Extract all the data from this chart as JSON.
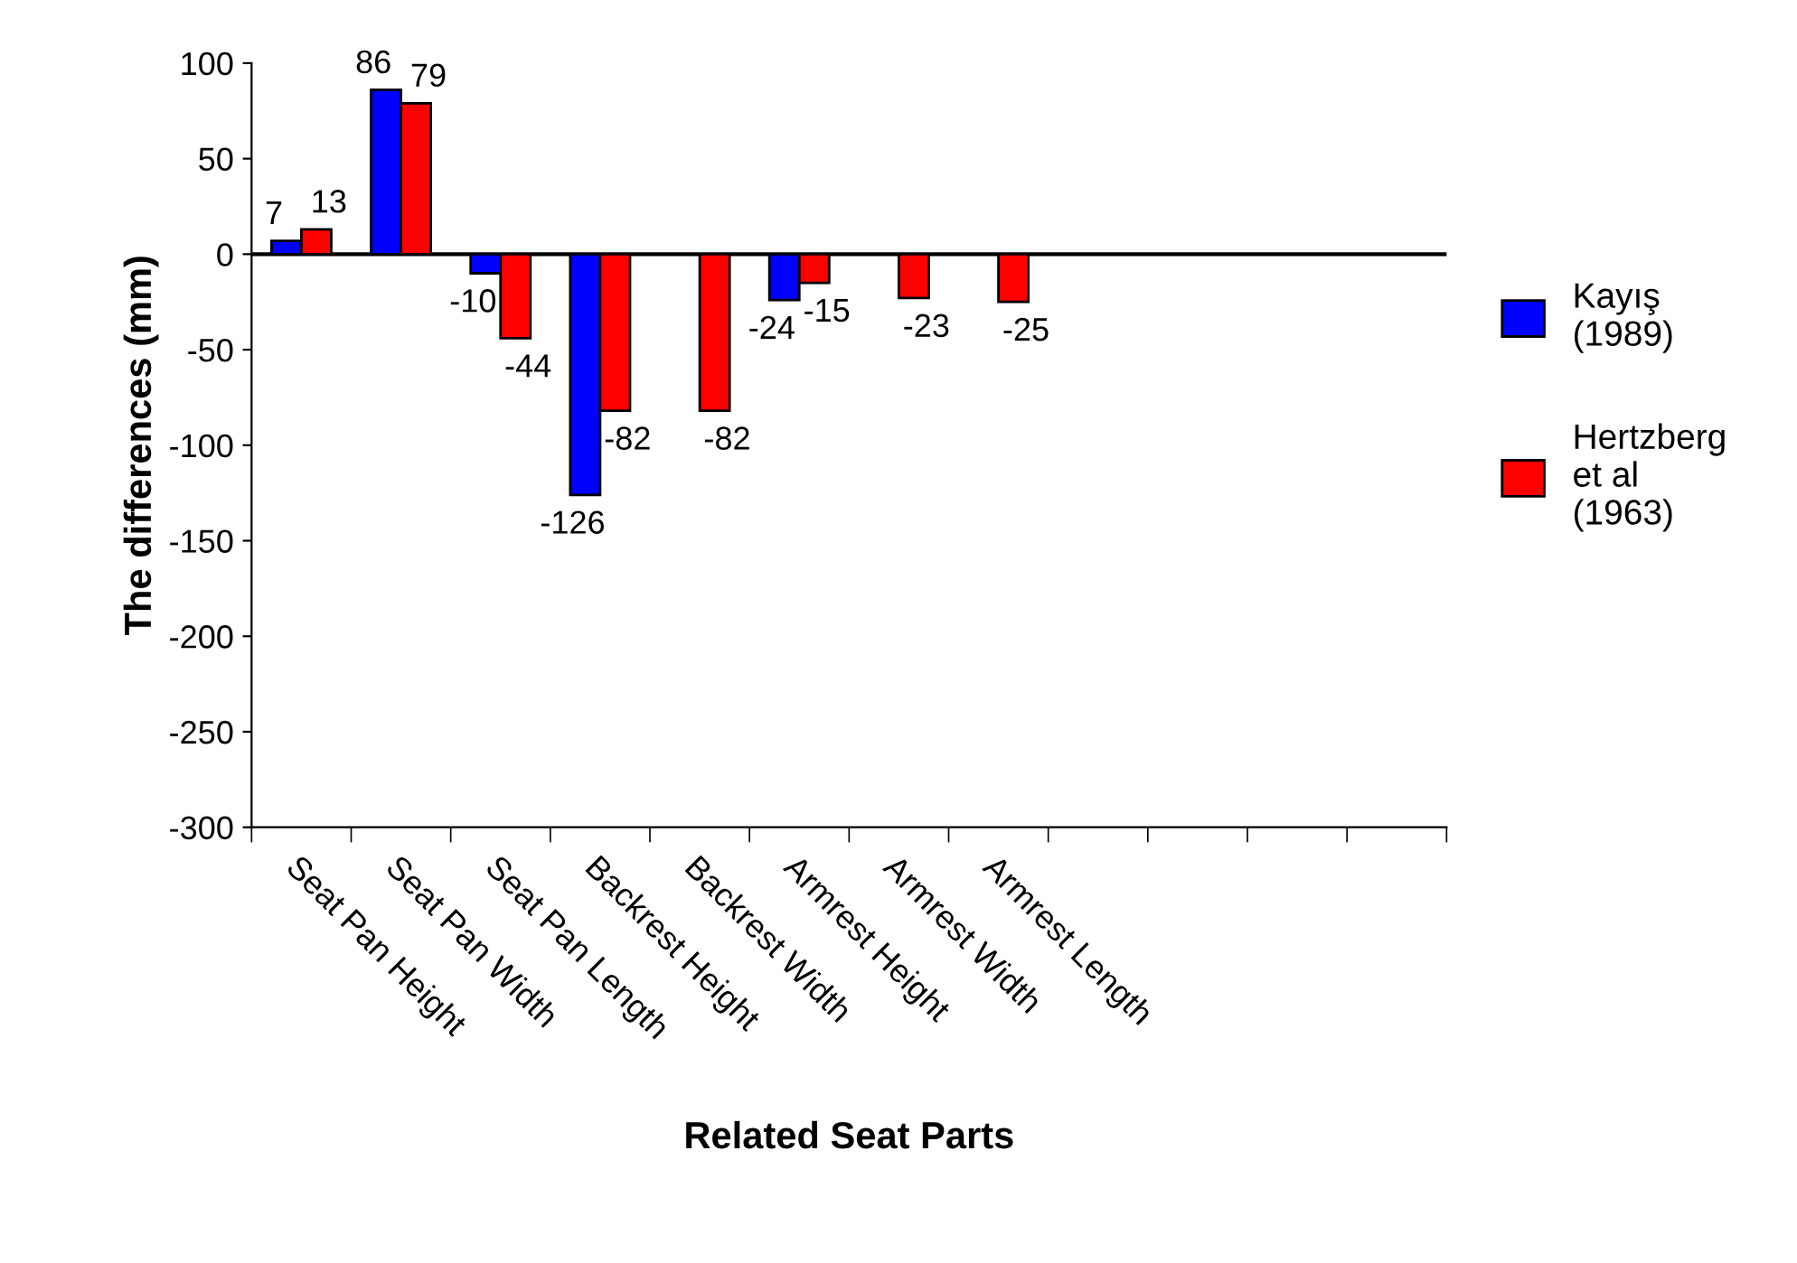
{
  "chart_data": {
    "type": "bar",
    "xlabel": "Related Seat Parts",
    "ylabel": "The differences (mm)",
    "categories": [
      "Seat Pan Height",
      "Seat Pan Width",
      "Seat Pan Length",
      "Backrest Height",
      "Backrest Width",
      "Armrest Height",
      "Armrest Width",
      "Armrest Length",
      null,
      null,
      null,
      null
    ],
    "series": [
      {
        "name": "Kayış\n(1989)",
        "color": "#0000ff",
        "values": [
          7,
          86,
          -10,
          -126,
          null,
          -24,
          null,
          null,
          null,
          null,
          null,
          null
        ],
        "value_labels": [
          "7",
          "86",
          "-10",
          "-126",
          null,
          "-24",
          null,
          null,
          null,
          null,
          null,
          null
        ]
      },
      {
        "name": "Hertzberg\net al\n(1963)",
        "color": "#ff0000",
        "values": [
          13,
          79,
          -44,
          -82,
          -82,
          -15,
          -23,
          -25,
          null,
          null,
          null,
          null
        ],
        "value_labels": [
          "13",
          "79",
          "-44",
          "-82",
          "-82",
          "-15",
          "-23",
          "-25",
          null,
          null,
          null,
          null
        ]
      }
    ],
    "ylim": [
      -300,
      100
    ],
    "yticks": [
      -300,
      -250,
      -200,
      -150,
      -100,
      -50,
      0,
      50,
      100
    ],
    "ref_lines": [
      {
        "axis": "y",
        "value": 0,
        "color": "#000000"
      }
    ],
    "grid": false,
    "legend": "right"
  }
}
